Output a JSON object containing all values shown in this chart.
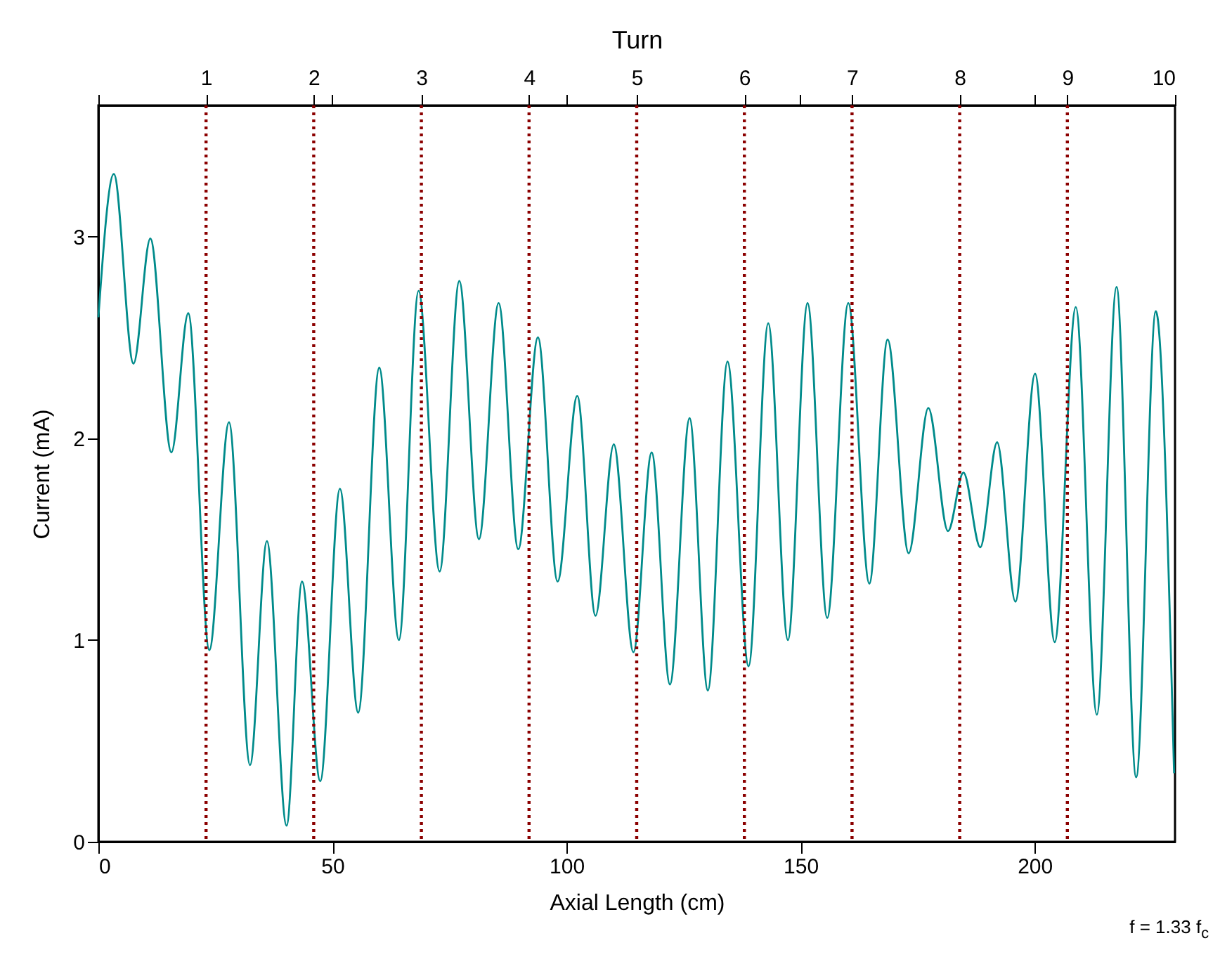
{
  "chart_data": {
    "type": "line",
    "xlabel": "Axial Length (cm)",
    "ylabel": "Current (mA)",
    "x2label": "Turn",
    "annotations": [
      "f = 1.33 f$_{c}$"
    ],
    "x": [
      0,
      3.3,
      7.5,
      11.1,
      15.6,
      19.2,
      23.7,
      27.9,
      32.4,
      36,
      40.2,
      43.5,
      47.4,
      51.6,
      55.5,
      60,
      64.2,
      68.4,
      72.9,
      77.1,
      81.3,
      85.5,
      89.7,
      93.9,
      98.1,
      102.3,
      106.2,
      110.1,
      114.3,
      118.2,
      122.1,
      126.3,
      130.2,
      134.4,
      138.9,
      143.1,
      147.3,
      151.5,
      155.7,
      160.2,
      164.7,
      168.6,
      173.1,
      177.3,
      181.5,
      184.8,
      188.4,
      192,
      195.9,
      200.1,
      204.3,
      208.8,
      213.3,
      217.5,
      221.7,
      225.9,
      229.8
    ],
    "series": [
      {
        "color": "#008b8b",
        "values": [
          2.6,
          3.31,
          2.37,
          2.99,
          1.93,
          2.62,
          0.95,
          2.08,
          0.38,
          1.49,
          0.08,
          1.29,
          0.3,
          1.75,
          0.64,
          2.35,
          1.0,
          2.73,
          1.34,
          2.78,
          1.5,
          2.67,
          1.45,
          2.5,
          1.29,
          2.21,
          1.12,
          1.97,
          0.94,
          1.93,
          0.78,
          2.1,
          0.75,
          2.38,
          0.87,
          2.57,
          1.0,
          2.67,
          1.11,
          2.67,
          1.28,
          2.49,
          1.43,
          2.15,
          1.54,
          1.83,
          1.46,
          1.98,
          1.19,
          2.32,
          0.99,
          2.65,
          0.63,
          2.75,
          0.32,
          2.63,
          0.34
        ]
      }
    ],
    "xlim": [
      0,
      230
    ],
    "xticks": [
      0,
      50,
      100,
      150,
      200
    ],
    "ylim": [
      0,
      3.65
    ],
    "yticks": [
      0,
      1,
      2,
      3
    ],
    "x2lim": [
      0,
      10
    ],
    "x2ticks": [
      {
        "value": 0,
        "label": null
      },
      1,
      2,
      {
        "value": 2.17,
        "label": null
      },
      3,
      4,
      {
        "value": 4.35,
        "label": null
      },
      5,
      6,
      {
        "value": 6.52,
        "label": null
      },
      7,
      8,
      {
        "value": 8.7,
        "label": null
      },
      9,
      10
    ],
    "ref_lines": [
      {
        "axis": "x",
        "value": 23,
        "color": "#8b0000",
        "line_style": "dotted"
      },
      {
        "axis": "x",
        "value": 46,
        "color": "#8b0000",
        "line_style": "dotted"
      },
      {
        "axis": "x",
        "value": 69,
        "color": "#8b0000",
        "line_style": "dotted"
      },
      {
        "axis": "x",
        "value": 92,
        "color": "#8b0000",
        "line_style": "dotted"
      },
      {
        "axis": "x",
        "value": 115,
        "color": "#8b0000",
        "line_style": "dotted"
      },
      {
        "axis": "x",
        "value": 138,
        "color": "#8b0000",
        "line_style": "dotted"
      },
      {
        "axis": "x",
        "value": 161,
        "color": "#8b0000",
        "line_style": "dotted"
      },
      {
        "axis": "x",
        "value": 184,
        "color": "#8b0000",
        "line_style": "dotted"
      },
      {
        "axis": "x",
        "value": 207,
        "color": "#8b0000",
        "line_style": "dotted"
      }
    ]
  }
}
